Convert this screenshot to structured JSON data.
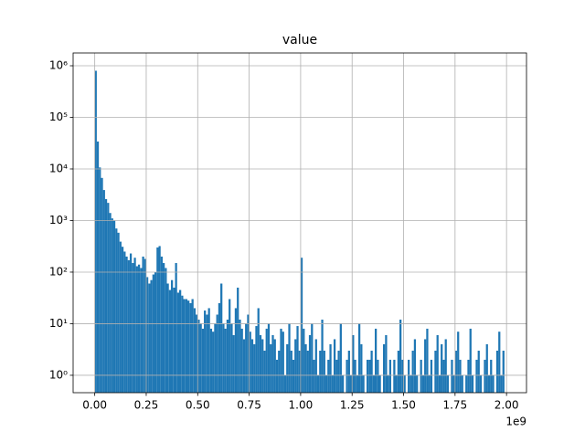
{
  "chart_data": {
    "type": "histogram",
    "title": "value",
    "x_offset_label": "1e9",
    "color": "#1f77b4",
    "log_y": true,
    "grid": true,
    "bins": [
      0,
      10000000,
      20000000,
      30000000,
      40000000,
      50000000,
      60000000,
      70000000,
      80000000,
      90000000,
      100000000,
      110000000,
      120000000,
      130000000,
      140000000,
      150000000,
      160000000,
      170000000,
      180000000,
      190000000,
      200000000,
      210000000,
      220000000,
      230000000,
      240000000,
      250000000,
      260000000,
      270000000,
      280000000,
      290000000,
      300000000,
      310000000,
      320000000,
      330000000,
      340000000,
      350000000,
      360000000,
      370000000,
      380000000,
      390000000,
      400000000,
      410000000,
      420000000,
      430000000,
      440000000,
      450000000,
      460000000,
      470000000,
      480000000,
      490000000,
      500000000,
      510000000,
      520000000,
      530000000,
      540000000,
      550000000,
      560000000,
      570000000,
      580000000,
      590000000,
      600000000,
      610000000,
      620000000,
      630000000,
      640000000,
      650000000,
      660000000,
      670000000,
      680000000,
      690000000,
      700000000,
      710000000,
      720000000,
      730000000,
      740000000,
      750000000,
      760000000,
      770000000,
      780000000,
      790000000,
      800000000,
      810000000,
      820000000,
      830000000,
      840000000,
      850000000,
      860000000,
      870000000,
      880000000,
      890000000,
      900000000,
      910000000,
      920000000,
      930000000,
      940000000,
      950000000,
      960000000,
      970000000,
      980000000,
      990000000,
      1000000000,
      1010000000,
      1020000000,
      1030000000,
      1040000000,
      1050000000,
      1060000000,
      1070000000,
      1080000000,
      1090000000,
      1100000000,
      1110000000,
      1120000000,
      1130000000,
      1140000000,
      1150000000,
      1160000000,
      1170000000,
      1180000000,
      1190000000,
      1200000000,
      1210000000,
      1220000000,
      1230000000,
      1240000000,
      1250000000,
      1260000000,
      1270000000,
      1280000000,
      1290000000,
      1300000000,
      1310000000,
      1320000000,
      1330000000,
      1340000000,
      1350000000,
      1360000000,
      1370000000,
      1380000000,
      1390000000,
      1400000000,
      1410000000,
      1420000000,
      1430000000,
      1440000000,
      1450000000,
      1460000000,
      1470000000,
      1480000000,
      1490000000,
      1500000000,
      1510000000,
      1520000000,
      1530000000,
      1540000000,
      1550000000,
      1560000000,
      1570000000,
      1580000000,
      1590000000,
      1600000000,
      1610000000,
      1620000000,
      1630000000,
      1640000000,
      1650000000,
      1660000000,
      1670000000,
      1680000000,
      1690000000,
      1700000000,
      1710000000,
      1720000000,
      1730000000,
      1740000000,
      1750000000,
      1760000000,
      1770000000,
      1780000000,
      1790000000,
      1800000000,
      1810000000,
      1820000000,
      1830000000,
      1840000000,
      1850000000,
      1860000000,
      1870000000,
      1880000000,
      1890000000,
      1900000000,
      1910000000,
      1920000000,
      1930000000,
      1940000000,
      1950000000,
      1960000000,
      1970000000,
      1980000000,
      1990000000,
      2000000000
    ],
    "counts": [
      800000,
      34000,
      10700,
      6700,
      3900,
      2600,
      2200,
      1400,
      1100,
      1000,
      700,
      580,
      390,
      310,
      250,
      200,
      170,
      230,
      150,
      190,
      130,
      140,
      120,
      200,
      180,
      80,
      60,
      70,
      90,
      100,
      300,
      320,
      200,
      150,
      120,
      60,
      45,
      70,
      50,
      150,
      40,
      45,
      35,
      30,
      30,
      28,
      25,
      30,
      20,
      15,
      12,
      10,
      8,
      18,
      15,
      20,
      8,
      7,
      10,
      15,
      25,
      60,
      10,
      8,
      12,
      30,
      10,
      6,
      20,
      50,
      12,
      8,
      5,
      10,
      15,
      7,
      5,
      4,
      9,
      20,
      6,
      5,
      3,
      8,
      10,
      4,
      6,
      5,
      2,
      3,
      8,
      7,
      1,
      4,
      10,
      3,
      2,
      5,
      9,
      3,
      190,
      8,
      4,
      3,
      6,
      10,
      2,
      5,
      1,
      3,
      12,
      3,
      1,
      2,
      4,
      1,
      5,
      2,
      3,
      10,
      1,
      0,
      2,
      3,
      1,
      6,
      2,
      1,
      10,
      4,
      1,
      0,
      2,
      2,
      3,
      1,
      8,
      2,
      1,
      0,
      4,
      6,
      1,
      2,
      0,
      2,
      1,
      3,
      12,
      2,
      1,
      0,
      2,
      1,
      3,
      5,
      1,
      0,
      2,
      1,
      5,
      8,
      1,
      2,
      0,
      3,
      6,
      1,
      4,
      2,
      5,
      1,
      0,
      2,
      1,
      3,
      7,
      2,
      1,
      0,
      1,
      2,
      8,
      1,
      0,
      2,
      3,
      1,
      0,
      2,
      4,
      1,
      2,
      1,
      0,
      3,
      7,
      1,
      3,
      0
    ],
    "xlim": [
      -105000000,
      2097000000
    ],
    "xticks": [
      {
        "value": 0,
        "label": "0.00"
      },
      {
        "value": 250000000,
        "label": "0.25"
      },
      {
        "value": 500000000,
        "label": "0.50"
      },
      {
        "value": 750000000,
        "label": "0.75"
      },
      {
        "value": 1000000000,
        "label": "1.00"
      },
      {
        "value": 1250000000,
        "label": "1.25"
      },
      {
        "value": 1500000000,
        "label": "1.50"
      },
      {
        "value": 1750000000,
        "label": "1.75"
      },
      {
        "value": 2000000000,
        "label": "2.00"
      }
    ],
    "ylim": [
      0.46,
      1770000
    ],
    "yticks": [
      {
        "value": 1,
        "label": "10⁰"
      },
      {
        "value": 10,
        "label": "10¹"
      },
      {
        "value": 100,
        "label": "10²"
      },
      {
        "value": 1000,
        "label": "10³"
      },
      {
        "value": 10000,
        "label": "10⁴"
      },
      {
        "value": 100000,
        "label": "10⁵"
      },
      {
        "value": 1000000,
        "label": "10⁶"
      }
    ]
  }
}
